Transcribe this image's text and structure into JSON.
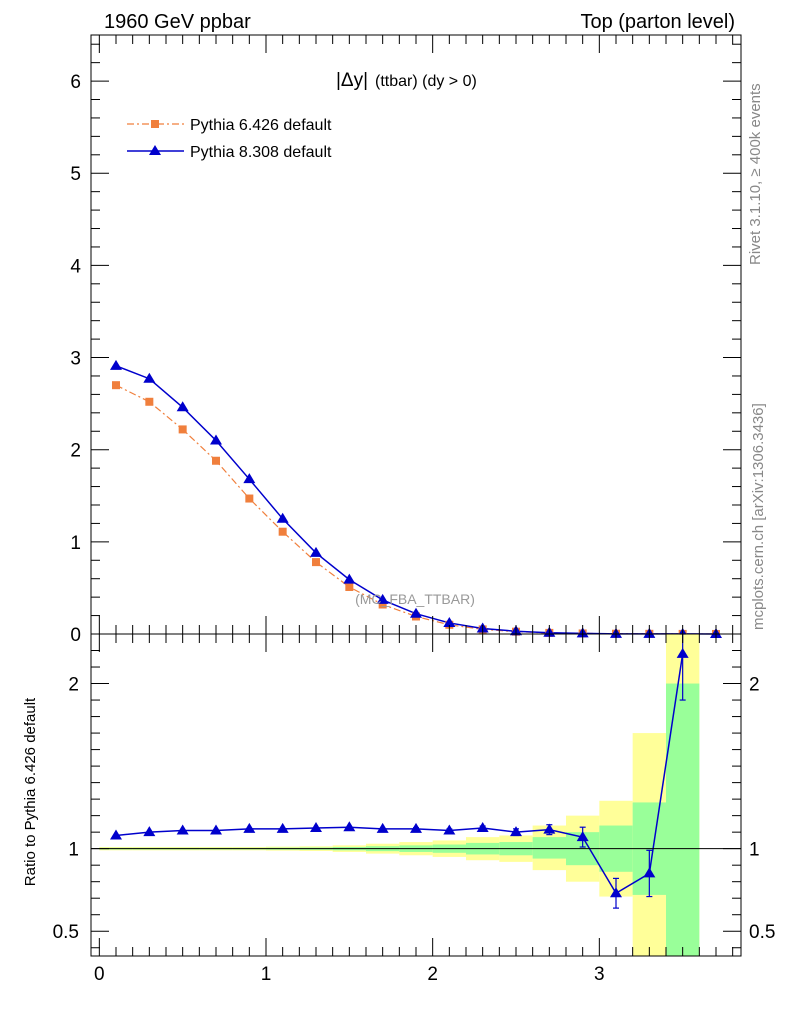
{
  "header": {
    "left_title": "1960 GeV ppbar",
    "right_title": "Top (parton level)"
  },
  "side_labels": {
    "rivet": "Rivet 3.1.10, ≥ 400k events",
    "mcplots": "mcplots.cern.ch [arXiv:1306.3436]"
  },
  "watermark": "(MC_FBA_TTBAR)",
  "plot_title": {
    "main": "|Δy|",
    "sub": "(ttbar) (dy > 0)"
  },
  "colors": {
    "pythia6": "#f07f3c",
    "pythia8": "#0000cc",
    "band_inner": "#99ff99",
    "band_outer": "#ffff99"
  },
  "chart_data": [
    {
      "type": "line",
      "panel": "main",
      "title": "|Δy| (ttbar) (dy > 0)",
      "xlabel": "",
      "ylabel": "",
      "xlim": [
        -0.05,
        3.85
      ],
      "ylim": [
        0,
        6.5
      ],
      "yticks": [
        0,
        1,
        2,
        3,
        4,
        5,
        6
      ],
      "ytick_labels": [
        "0",
        "1",
        "2",
        "3",
        "4",
        "5",
        "6"
      ],
      "legend_position": "top-left",
      "x": [
        0.1,
        0.3,
        0.5,
        0.7,
        0.9,
        1.1,
        1.3,
        1.5,
        1.7,
        1.9,
        2.1,
        2.3,
        2.5,
        2.7,
        2.9,
        3.1,
        3.3,
        3.5,
        3.7
      ],
      "series": [
        {
          "name": "Pythia 6.426 default",
          "style": "dash-dot, square markers",
          "values": [
            2.7,
            2.52,
            2.22,
            1.88,
            1.47,
            1.11,
            0.78,
            0.51,
            0.32,
            0.19,
            0.1,
            0.05,
            0.025,
            0.012,
            0.006,
            0.003,
            0.002,
            0.001,
            0.0005
          ]
        },
        {
          "name": "Pythia 8.308 default",
          "style": "solid, triangle markers",
          "values": [
            2.91,
            2.77,
            2.46,
            2.1,
            1.68,
            1.25,
            0.88,
            0.59,
            0.37,
            0.22,
            0.12,
            0.06,
            0.03,
            0.014,
            0.007,
            0.002,
            0.0015,
            0.002,
            0.0005
          ]
        }
      ]
    },
    {
      "type": "line",
      "panel": "ratio",
      "title": "",
      "xlabel": "",
      "ylabel": "Ratio to Pythia 6.426 default",
      "xlim": [
        -0.05,
        3.85
      ],
      "ylim": [
        0.35,
        2.3
      ],
      "xticks": [
        0,
        1,
        2,
        3
      ],
      "xtick_labels": [
        "0",
        "1",
        "2",
        "3"
      ],
      "yticks": [
        0.5,
        1,
        2
      ],
      "ytick_labels": [
        "0.5",
        "1",
        "2"
      ],
      "reference_line": 1,
      "band_bins": [
        {
          "lo": 0.0,
          "hi": 0.2,
          "inner": [
            0.995,
            1.005
          ],
          "outer": [
            0.99,
            1.01
          ]
        },
        {
          "lo": 0.2,
          "hi": 0.4,
          "inner": [
            0.995,
            1.005
          ],
          "outer": [
            0.99,
            1.01
          ]
        },
        {
          "lo": 0.4,
          "hi": 0.6,
          "inner": [
            0.995,
            1.005
          ],
          "outer": [
            0.99,
            1.01
          ]
        },
        {
          "lo": 0.6,
          "hi": 0.8,
          "inner": [
            0.995,
            1.005
          ],
          "outer": [
            0.99,
            1.01
          ]
        },
        {
          "lo": 0.8,
          "hi": 1.0,
          "inner": [
            0.995,
            1.005
          ],
          "outer": [
            0.99,
            1.01
          ]
        },
        {
          "lo": 1.0,
          "hi": 1.2,
          "inner": [
            0.994,
            1.006
          ],
          "outer": [
            0.988,
            1.012
          ]
        },
        {
          "lo": 1.2,
          "hi": 1.4,
          "inner": [
            0.993,
            1.007
          ],
          "outer": [
            0.986,
            1.014
          ]
        },
        {
          "lo": 1.4,
          "hi": 1.6,
          "inner": [
            0.99,
            1.01
          ],
          "outer": [
            0.98,
            1.02
          ]
        },
        {
          "lo": 1.6,
          "hi": 1.8,
          "inner": [
            0.985,
            1.015
          ],
          "outer": [
            0.97,
            1.03
          ]
        },
        {
          "lo": 1.8,
          "hi": 2.0,
          "inner": [
            0.98,
            1.02
          ],
          "outer": [
            0.96,
            1.04
          ]
        },
        {
          "lo": 2.0,
          "hi": 2.2,
          "inner": [
            0.975,
            1.025
          ],
          "outer": [
            0.95,
            1.05
          ]
        },
        {
          "lo": 2.2,
          "hi": 2.4,
          "inner": [
            0.965,
            1.035
          ],
          "outer": [
            0.93,
            1.07
          ]
        },
        {
          "lo": 2.4,
          "hi": 2.6,
          "inner": [
            0.96,
            1.04
          ],
          "outer": [
            0.92,
            1.08
          ]
        },
        {
          "lo": 2.6,
          "hi": 2.8,
          "inner": [
            0.94,
            1.07
          ],
          "outer": [
            0.87,
            1.14
          ]
        },
        {
          "lo": 2.8,
          "hi": 3.0,
          "inner": [
            0.9,
            1.1
          ],
          "outer": [
            0.8,
            1.2
          ]
        },
        {
          "lo": 3.0,
          "hi": 3.2,
          "inner": [
            0.86,
            1.14
          ],
          "outer": [
            0.71,
            1.29
          ]
        },
        {
          "lo": 3.2,
          "hi": 3.4,
          "inner": [
            0.72,
            1.28
          ],
          "outer": [
            0.3,
            1.7
          ]
        },
        {
          "lo": 3.4,
          "hi": 3.6,
          "inner": [
            0.3,
            2.0
          ],
          "outer": [
            0.3,
            2.4
          ]
        }
      ],
      "series": [
        {
          "name": "Pythia 8.308 / Pythia 6.426",
          "x": [
            0.1,
            0.3,
            0.5,
            0.7,
            0.9,
            1.1,
            1.3,
            1.5,
            1.7,
            1.9,
            2.1,
            2.3,
            2.5,
            2.7,
            2.9,
            3.1,
            3.3,
            3.5
          ],
          "values": [
            1.08,
            1.1,
            1.11,
            1.11,
            1.12,
            1.12,
            1.125,
            1.13,
            1.12,
            1.12,
            1.11,
            1.125,
            1.1,
            1.115,
            1.07,
            0.73,
            0.85,
            2.18
          ],
          "errors": [
            0.003,
            0.003,
            0.003,
            0.003,
            0.003,
            0.003,
            0.004,
            0.005,
            0.006,
            0.007,
            0.009,
            0.012,
            0.02,
            0.03,
            0.06,
            0.09,
            0.14,
            0.28
          ]
        }
      ]
    }
  ]
}
